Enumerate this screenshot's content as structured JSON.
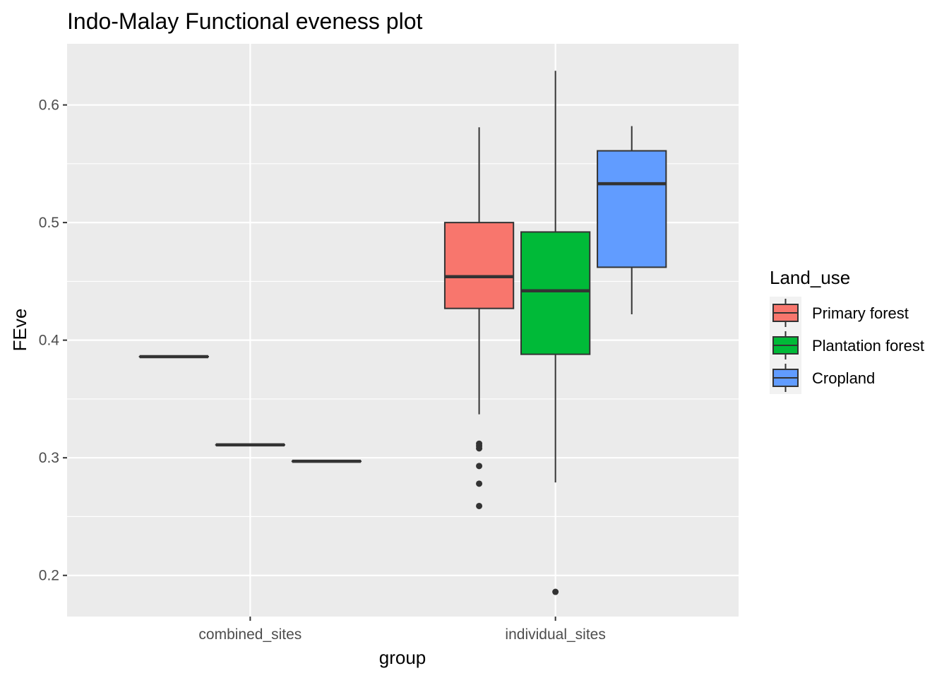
{
  "chart_data": {
    "type": "boxplot",
    "title": "Indo-Malay Functional eveness plot",
    "xlabel": "group",
    "ylabel": "FEve",
    "ylim": [
      0.165,
      0.652
    ],
    "yticks": [
      0.2,
      0.3,
      0.4,
      0.5,
      0.6
    ],
    "ytick_labels": [
      "0.2",
      "0.3",
      "0.4",
      "0.5",
      "0.6"
    ],
    "categories": [
      "combined_sites",
      "individual_sites"
    ],
    "grid": true,
    "legend": {
      "title": "Land_use",
      "position": "right"
    },
    "series": [
      {
        "name": "Primary forest",
        "color": "#F8766D",
        "boxes": [
          {
            "category": "combined_sites",
            "min": 0.386,
            "q1": 0.386,
            "median": 0.386,
            "q3": 0.386,
            "max": 0.386,
            "outliers": []
          },
          {
            "category": "individual_sites",
            "min": 0.337,
            "q1": 0.427,
            "median": 0.454,
            "q3": 0.5,
            "max": 0.581,
            "outliers": [
              0.312,
              0.31,
              0.308,
              0.293,
              0.278,
              0.259
            ]
          }
        ]
      },
      {
        "name": "Plantation forest",
        "color": "#00BA38",
        "boxes": [
          {
            "category": "combined_sites",
            "min": 0.311,
            "q1": 0.311,
            "median": 0.311,
            "q3": 0.311,
            "max": 0.311,
            "outliers": []
          },
          {
            "category": "individual_sites",
            "min": 0.279,
            "q1": 0.388,
            "median": 0.442,
            "q3": 0.492,
            "max": 0.629,
            "outliers": [
              0.186
            ]
          }
        ]
      },
      {
        "name": "Cropland",
        "color": "#619CFF",
        "boxes": [
          {
            "category": "combined_sites",
            "min": 0.297,
            "q1": 0.297,
            "median": 0.297,
            "q3": 0.297,
            "max": 0.297,
            "outliers": []
          },
          {
            "category": "individual_sites",
            "min": 0.422,
            "q1": 0.462,
            "median": 0.533,
            "q3": 0.561,
            "max": 0.582,
            "outliers": []
          }
        ]
      }
    ]
  }
}
